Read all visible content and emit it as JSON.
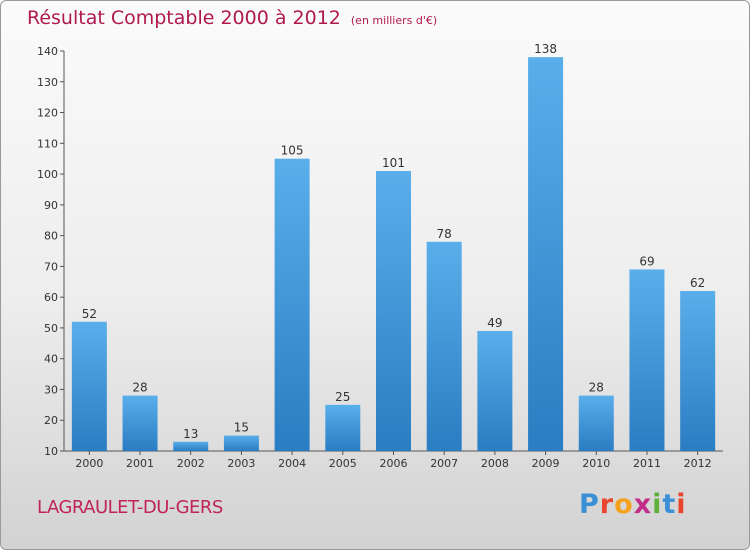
{
  "title": "Résultat Comptable 2000 à 2012",
  "unit": "(en milliers d'€)",
  "commune": "LAGRAULET-DU-GERS",
  "logo": {
    "text": "Proxiti",
    "colors": [
      "#3b8fd6",
      "#e9452e",
      "#f4a21e",
      "#c22d89",
      "#60b03b",
      "#3b8fd6",
      "#e9452e"
    ]
  },
  "colors": {
    "bar_top": "#5aaeea",
    "bar_bottom": "#2a7dc2",
    "title": "#b0194f"
  },
  "chart_data": {
    "type": "bar",
    "categories": [
      "2000",
      "2001",
      "2002",
      "2003",
      "2004",
      "2005",
      "2006",
      "2007",
      "2008",
      "2009",
      "2010",
      "2011",
      "2012"
    ],
    "values": [
      52,
      28,
      13,
      15,
      105,
      25,
      101,
      78,
      49,
      138,
      28,
      69,
      62
    ],
    "ylim": [
      10,
      140
    ],
    "yticks": [
      10,
      20,
      30,
      40,
      50,
      60,
      70,
      80,
      90,
      100,
      110,
      120,
      130,
      140
    ],
    "grid": false,
    "xlabel": "",
    "ylabel": ""
  }
}
